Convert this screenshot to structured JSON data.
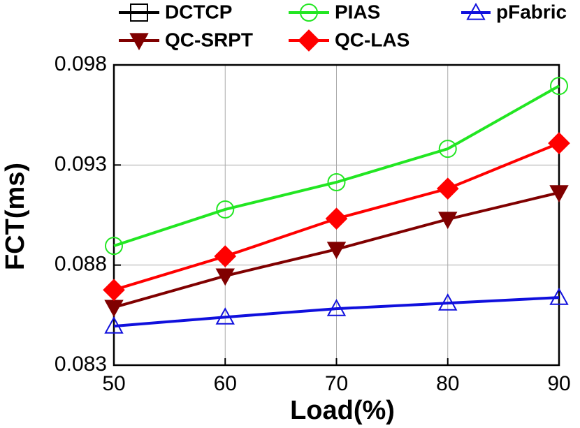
{
  "chart_data": {
    "type": "line",
    "x_label": "Load(%)",
    "y_label": "FCT(ms)",
    "x": [
      50,
      60,
      70,
      80,
      90
    ],
    "xlim": [
      50,
      90
    ],
    "xticks": [
      50,
      60,
      70,
      80,
      90
    ],
    "ylim": [
      0.083,
      0.098
    ],
    "yticks": [
      0.083,
      0.088,
      0.093,
      0.098
    ],
    "grid": true,
    "legend": "top",
    "series": [
      {
        "name": "DCTCP",
        "color": "#000000",
        "marker": "square",
        "values": [
          null,
          null,
          null,
          null,
          null
        ]
      },
      {
        "name": "PIAS",
        "color": "#22e622",
        "marker": "circle",
        "values": [
          0.08896,
          0.09078,
          0.09214,
          0.09381,
          0.09695
        ]
      },
      {
        "name": "pFabric",
        "color": "#1010dd",
        "marker": "triangle-up",
        "values": [
          0.08495,
          0.0854,
          0.08582,
          0.0861,
          0.08638
        ]
      },
      {
        "name": "QC-SRPT",
        "color": "#800000",
        "marker": "triangle-down",
        "values": [
          0.08589,
          0.08746,
          0.08879,
          0.09029,
          0.09162
        ]
      },
      {
        "name": "QC-LAS",
        "color": "#ff0000",
        "marker": "diamond",
        "values": [
          0.08676,
          0.08844,
          0.09032,
          0.09182,
          0.09409
        ]
      }
    ]
  }
}
